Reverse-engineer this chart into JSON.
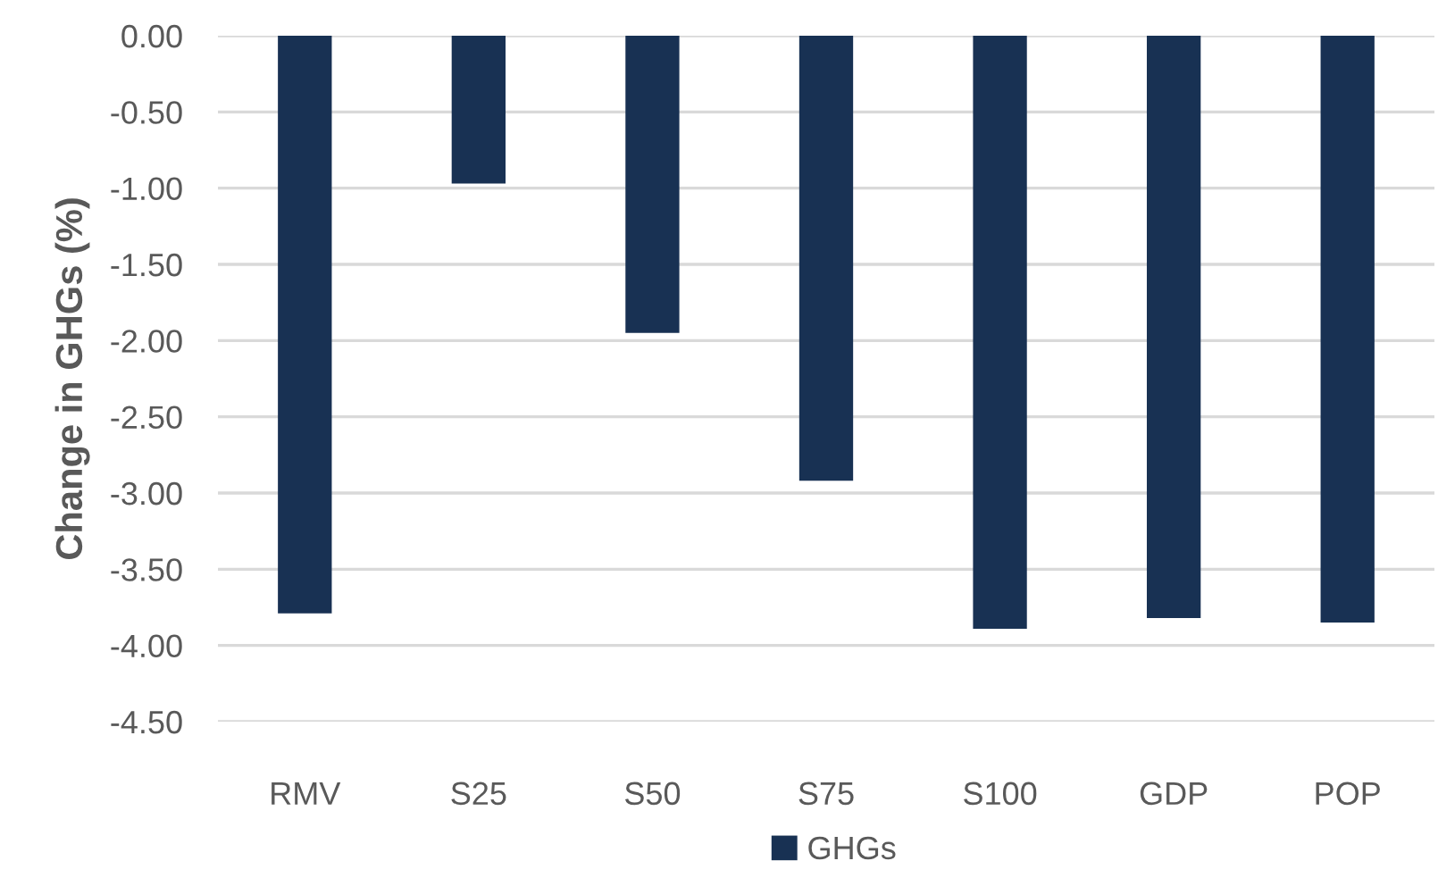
{
  "chart_data": {
    "type": "bar",
    "ylabel": "Change in GHGs (%)",
    "categories": [
      "RMV",
      "S25",
      "S50",
      "S75",
      "S100",
      "GDP",
      "POP"
    ],
    "series": [
      {
        "name": "GHGs",
        "color": "#183153",
        "values": [
          -3.79,
          -0.97,
          -1.95,
          -2.92,
          -3.89,
          -3.82,
          -3.85
        ]
      }
    ],
    "ylim": [
      -4.5,
      0
    ],
    "yticks": [
      {
        "value": 0,
        "label": "0.00"
      },
      {
        "value": -0.5,
        "label": "-0.50"
      },
      {
        "value": -1,
        "label": "-1.00"
      },
      {
        "value": -1.5,
        "label": "-1.50"
      },
      {
        "value": -2,
        "label": "-2.00"
      },
      {
        "value": -2.5,
        "label": "-2.50"
      },
      {
        "value": -3,
        "label": "-3.00"
      },
      {
        "value": -3.5,
        "label": "-3.50"
      },
      {
        "value": -4,
        "label": "-4.00"
      },
      {
        "value": -4.5,
        "label": "-4.50"
      }
    ],
    "grid": "y",
    "legend": "bottom"
  }
}
